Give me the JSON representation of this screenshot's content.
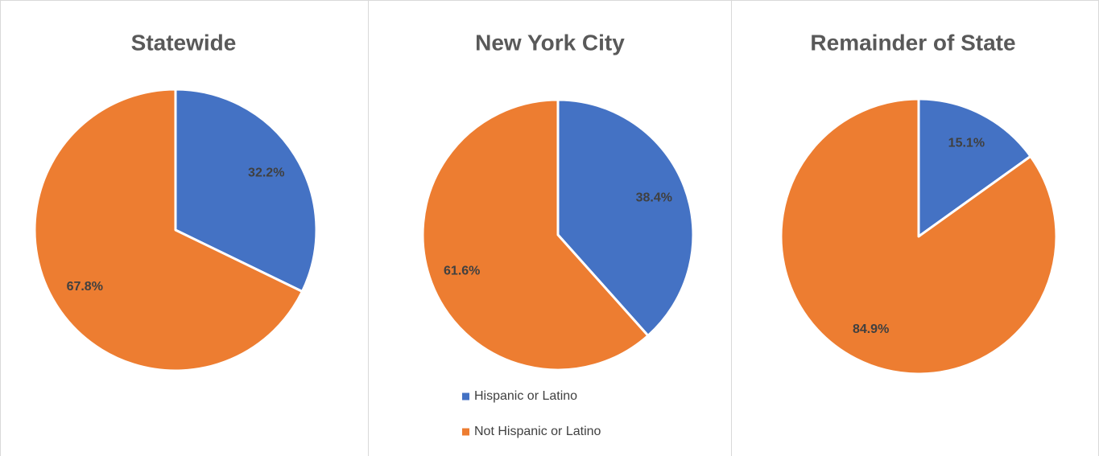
{
  "chart_data": [
    {
      "type": "pie",
      "title": "Statewide",
      "values": [
        32.2,
        67.8
      ],
      "value_labels": [
        "32.2%",
        "67.8%"
      ],
      "colors": [
        "#4472c4",
        "#ed7d31"
      ]
    },
    {
      "type": "pie",
      "title": "New York City",
      "categories": [
        "Hispanic or Latino",
        "Not Hispanic or Latino"
      ],
      "values": [
        38.4,
        61.6
      ],
      "value_labels": [
        "38.4%",
        "61.6%"
      ],
      "colors": [
        "#4472c4",
        "#ed7d31"
      ],
      "legend": "bottom"
    },
    {
      "type": "pie",
      "title": "Remainder of State",
      "values": [
        15.1,
        84.9
      ],
      "value_labels": [
        "15.1%",
        "84.9%"
      ],
      "colors": [
        "#4472c4",
        "#ed7d31"
      ]
    }
  ]
}
